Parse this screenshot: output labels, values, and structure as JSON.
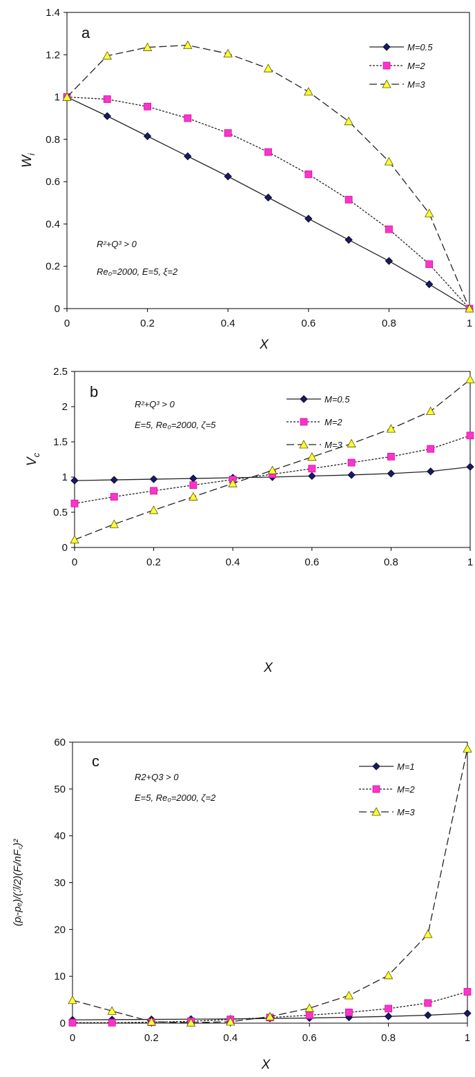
{
  "chart_data": [
    {
      "type": "line",
      "panel_label": "a",
      "xlabel": "X",
      "ylabel": "W",
      "ylabel_sub": "i",
      "xlim": [
        0,
        1
      ],
      "ylim": [
        0,
        1.4
      ],
      "xticks": [
        "0",
        "0.2",
        "0.4",
        "0.6",
        "0.8",
        "1"
      ],
      "xtick_values": [
        0,
        0.2,
        0.4,
        0.6,
        0.8,
        1
      ],
      "yticks": [
        "0",
        "0.2",
        "0.4",
        "0.6",
        "0.8",
        "1",
        "1.2",
        "1.4"
      ],
      "ytick_values": [
        0,
        0.2,
        0.4,
        0.6,
        0.8,
        1,
        1.2,
        1.4
      ],
      "grid": false,
      "legend_position": "top-right",
      "annotations": [
        "R²+Q³ > 0",
        "Re₀=2000, E=5, ξ=2"
      ],
      "x": [
        0,
        0.1,
        0.2,
        0.3,
        0.4,
        0.5,
        0.6,
        0.7,
        0.8,
        0.9,
        1
      ],
      "series": [
        {
          "name": "M=0.5",
          "style": "solid",
          "marker": "diamond",
          "color": "#1a1a5e",
          "values": [
            1.0,
            0.91,
            0.815,
            0.72,
            0.625,
            0.525,
            0.425,
            0.325,
            0.225,
            0.115,
            0.0
          ]
        },
        {
          "name": "M=2",
          "style": "dotted",
          "marker": "square",
          "color": "#ff33cc",
          "values": [
            1.0,
            0.99,
            0.955,
            0.9,
            0.83,
            0.74,
            0.635,
            0.515,
            0.375,
            0.21,
            0.0
          ]
        },
        {
          "name": "M=3",
          "style": "dashed",
          "marker": "triangle",
          "color": "#ffff33",
          "values": [
            1.0,
            1.195,
            1.235,
            1.245,
            1.205,
            1.135,
            1.025,
            0.885,
            0.695,
            0.45,
            0.0
          ]
        }
      ]
    },
    {
      "type": "line",
      "panel_label": "b",
      "xlabel": "X",
      "ylabel": "V",
      "ylabel_sub": "c",
      "xlim": [
        0,
        1
      ],
      "ylim": [
        0,
        2.5
      ],
      "xticks": [
        "0",
        "0.2",
        "0.4",
        "0.6",
        "0.8",
        "1"
      ],
      "xtick_values": [
        0,
        0.2,
        0.4,
        0.6,
        0.8,
        1
      ],
      "yticks": [
        "0",
        "0.5",
        "1",
        "1.5",
        "2",
        "2.5"
      ],
      "ytick_values": [
        0,
        0.5,
        1,
        1.5,
        2,
        2.5
      ],
      "grid": false,
      "legend_position": "top-center",
      "annotations": [
        "R²+Q³ > 0",
        "E=5, Re₀=2000, ζ=5"
      ],
      "x": [
        0,
        0.1,
        0.2,
        0.3,
        0.4,
        0.5,
        0.6,
        0.7,
        0.8,
        0.9,
        1
      ],
      "series": [
        {
          "name": "M=0.5",
          "style": "solid",
          "marker": "diamond",
          "color": "#1a1a5e",
          "values": [
            0.95,
            0.96,
            0.97,
            0.98,
            0.99,
            1.0,
            1.015,
            1.03,
            1.05,
            1.08,
            1.145
          ]
        },
        {
          "name": "M=2",
          "style": "dotted",
          "marker": "square",
          "color": "#ff33cc",
          "values": [
            0.625,
            0.72,
            0.805,
            0.885,
            0.965,
            1.04,
            1.12,
            1.205,
            1.29,
            1.4,
            1.59
          ]
        },
        {
          "name": "M=3",
          "style": "dashed",
          "marker": "triangle",
          "color": "#ffff33",
          "values": [
            0.11,
            0.33,
            0.53,
            0.72,
            0.91,
            1.095,
            1.285,
            1.475,
            1.685,
            1.935,
            2.385
          ]
        }
      ]
    },
    {
      "type": "line",
      "panel_label": "c",
      "xlabel": "X",
      "ylabel": "(pᵢ-pₑ)/(ℐ/2)(Fᵢ/nF꜀)²",
      "xlim": [
        0,
        1
      ],
      "ylim": [
        0,
        60
      ],
      "xticks": [
        "0",
        "0.2",
        "0.4",
        "0.6",
        "0.8",
        "1"
      ],
      "xtick_values": [
        0,
        0.2,
        0.4,
        0.6,
        0.8,
        1
      ],
      "yticks": [
        "0",
        "10",
        "20",
        "30",
        "40",
        "50",
        "60"
      ],
      "ytick_values": [
        0,
        10,
        20,
        30,
        40,
        50,
        60
      ],
      "grid": false,
      "legend_position": "top-right",
      "annotations": [
        "R2+Q3 > 0",
        "E=5, Re₀=2000, ζ=2"
      ],
      "x": [
        0,
        0.1,
        0.2,
        0.3,
        0.4,
        0.5,
        0.6,
        0.7,
        0.8,
        0.9,
        1
      ],
      "series": [
        {
          "name": "M=1",
          "style": "solid",
          "marker": "diamond",
          "color": "#1a1a5e",
          "values": [
            0.7,
            0.75,
            0.8,
            0.85,
            0.9,
            1.0,
            1.1,
            1.25,
            1.45,
            1.7,
            2.1
          ]
        },
        {
          "name": "M=2",
          "style": "dotted",
          "marker": "square",
          "color": "#ff33cc",
          "values": [
            0.1,
            0.1,
            0.2,
            0.4,
            0.8,
            1.2,
            1.7,
            2.3,
            3.1,
            4.3,
            6.7
          ]
        },
        {
          "name": "M=3",
          "style": "dashed",
          "marker": "triangle",
          "color": "#ffff33",
          "values": [
            4.9,
            2.6,
            0.3,
            0.1,
            0.3,
            1.4,
            3.2,
            5.9,
            10.2,
            19.0,
            58.6
          ]
        }
      ]
    }
  ]
}
